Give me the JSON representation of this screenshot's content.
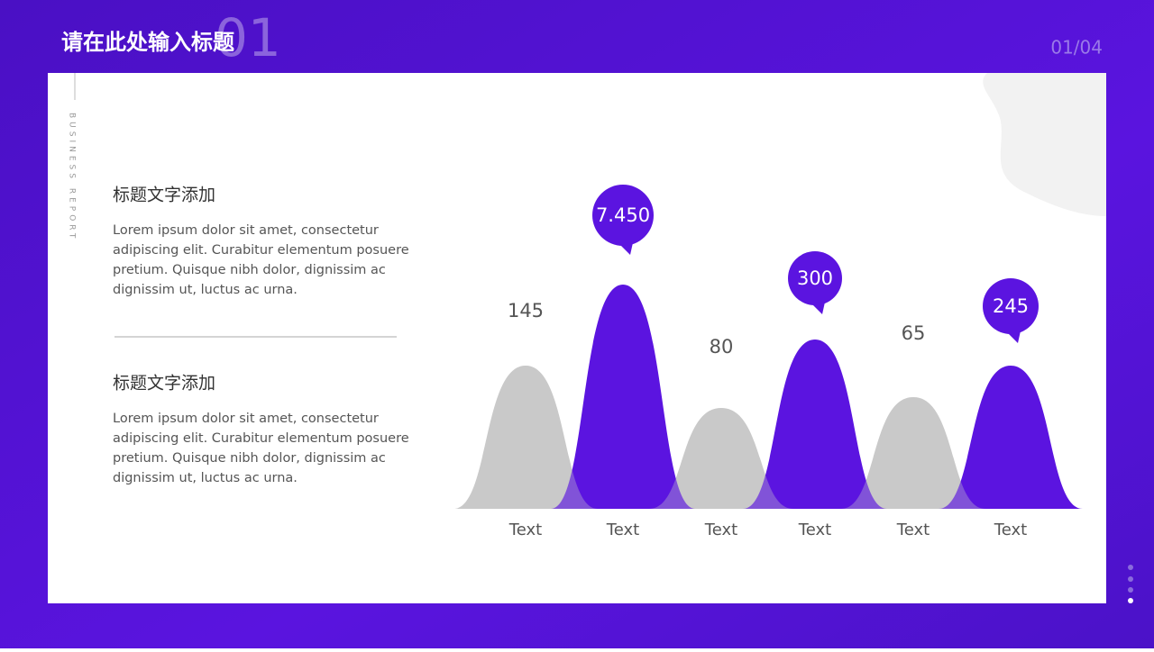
{
  "header": {
    "title": "请在此处输入标题",
    "number": "01",
    "page": "01/04"
  },
  "side_label": "BUSINESS REPORT",
  "sections": [
    {
      "heading": "标题文字添加",
      "lines": [
        "Lorem ipsum dolor sit amet, consectetur",
        "adipiscing elit. Curabitur elementum posuere",
        "pretium. Quisque nibh dolor, dignissim ac",
        "dignissim ut, luctus ac urna."
      ]
    },
    {
      "heading": "标题文字添加",
      "lines": [
        "Lorem ipsum dolor sit amet, consectetur",
        "adipiscing elit. Curabitur elementum posuere",
        "pretium. Quisque nibh dolor, dignissim ac",
        "dignissim ut, luctus ac urna."
      ]
    }
  ],
  "peaks": [
    {
      "label": "145",
      "category": "Text"
    },
    {
      "label": "7.450",
      "category": "Text"
    },
    {
      "label": "80",
      "category": "Text"
    },
    {
      "label": "300",
      "category": "Text"
    },
    {
      "label": "65",
      "category": "Text"
    },
    {
      "label": "245",
      "category": "Text"
    }
  ]
}
